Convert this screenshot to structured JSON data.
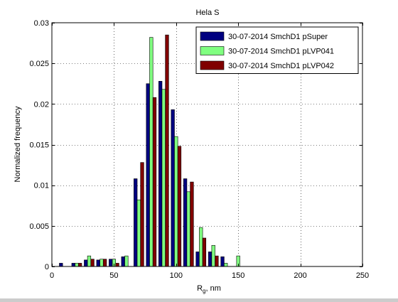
{
  "chart_data": {
    "type": "bar",
    "title": "Hela S",
    "xlabel_main": "R",
    "xlabel_sub": "g",
    "xlabel_rest": ", nm",
    "ylabel": "Normalized frequency",
    "xlim": [
      0,
      250
    ],
    "ylim": [
      0,
      0.03
    ],
    "xticks": [
      0,
      50,
      100,
      150,
      200,
      250
    ],
    "yticks": [
      0,
      0.005,
      0.01,
      0.015,
      0.02,
      0.025,
      0.03
    ],
    "xtick_labels": [
      "0",
      "50",
      "100",
      "150",
      "200",
      "250"
    ],
    "ytick_labels": [
      "0",
      "0.005",
      "0.01",
      "0.015",
      "0.02",
      "0.025",
      "0.03"
    ],
    "grid": true,
    "legend_position": "top-right",
    "bin_width": 10,
    "bin_centers": [
      10,
      20,
      30,
      40,
      50,
      60,
      70,
      80,
      90,
      100,
      110,
      120,
      130,
      140,
      150
    ],
    "series": [
      {
        "name": "30-07-2014 SmchD1 pSuper",
        "color": "#000080",
        "values": [
          0.0004,
          0.0004,
          0.0008,
          0.0008,
          0.0009,
          0.0012,
          0.0108,
          0.0225,
          0.0228,
          0.0193,
          0.0108,
          0.0018,
          0.0018,
          0.0012,
          0
        ]
      },
      {
        "name": "30-07-2014 SmchD1 pLVP041",
        "color": "#80ff80",
        "values": [
          0,
          0.0004,
          0.0013,
          0.0009,
          0.0009,
          0.0013,
          0.0082,
          0.0282,
          0.0218,
          0.016,
          0.0092,
          0.0048,
          0.0026,
          0.0004,
          0.0013
        ]
      },
      {
        "name": "30-07-2014 SmchD1 pLVP042",
        "color": "#800000",
        "values": [
          0,
          0.0004,
          0.0009,
          0.0009,
          0.0004,
          0,
          0.0128,
          0.0208,
          0.0285,
          0.0148,
          0.0104,
          0.0035,
          0.0013,
          0,
          0
        ]
      }
    ]
  }
}
